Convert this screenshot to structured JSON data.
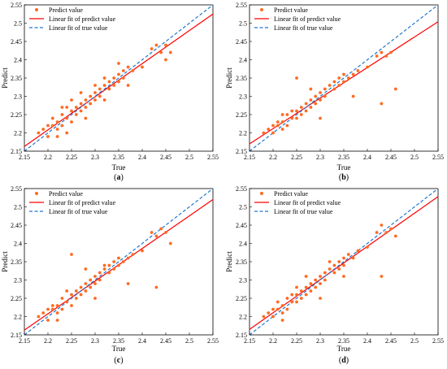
{
  "chart_data": [
    {
      "type": "scatter",
      "panel_label": "a",
      "xlabel": "True",
      "ylabel": "Predict",
      "xlim": [
        2.15,
        2.55
      ],
      "ylim": [
        2.15,
        2.55
      ],
      "xticks": [
        "2.15",
        "2.2",
        "2.25",
        "2.3",
        "2.35",
        "2.4",
        "2.45",
        "2.5",
        "2.55"
      ],
      "yticks": [
        "2.15",
        "2.2",
        "2.25",
        "2.3",
        "2.35",
        "2.4",
        "2.45",
        "2.5",
        "2.55"
      ],
      "legend_position": "top-left",
      "series": [
        {
          "name": "Predict value",
          "kind": "scatter",
          "color": "#ff6a21",
          "points": [
            [
              2.18,
              2.2
            ],
            [
              2.19,
              2.21
            ],
            [
              2.2,
              2.22
            ],
            [
              2.2,
              2.19
            ],
            [
              2.21,
              2.22
            ],
            [
              2.21,
              2.24
            ],
            [
              2.22,
              2.23
            ],
            [
              2.22,
              2.21
            ],
            [
              2.23,
              2.25
            ],
            [
              2.23,
              2.22
            ],
            [
              2.24,
              2.24
            ],
            [
              2.24,
              2.27
            ],
            [
              2.25,
              2.26
            ],
            [
              2.25,
              2.23
            ],
            [
              2.26,
              2.27
            ],
            [
              2.26,
              2.25
            ],
            [
              2.27,
              2.28
            ],
            [
              2.27,
              2.26
            ],
            [
              2.28,
              2.29
            ],
            [
              2.28,
              2.27
            ],
            [
              2.29,
              2.3
            ],
            [
              2.29,
              2.28
            ],
            [
              2.3,
              2.31
            ],
            [
              2.3,
              2.29
            ],
            [
              2.31,
              2.32
            ],
            [
              2.31,
              2.3
            ],
            [
              2.32,
              2.33
            ],
            [
              2.32,
              2.35
            ],
            [
              2.33,
              2.34
            ],
            [
              2.33,
              2.32
            ],
            [
              2.34,
              2.35
            ],
            [
              2.34,
              2.33
            ],
            [
              2.35,
              2.36
            ],
            [
              2.35,
              2.34
            ],
            [
              2.36,
              2.37
            ],
            [
              2.36,
              2.35
            ],
            [
              2.37,
              2.38
            ],
            [
              2.38,
              2.37
            ],
            [
              2.4,
              2.38
            ],
            [
              2.42,
              2.43
            ],
            [
              2.43,
              2.44
            ],
            [
              2.44,
              2.42
            ],
            [
              2.45,
              2.44
            ],
            [
              2.46,
              2.42
            ],
            [
              2.22,
              2.19
            ],
            [
              2.23,
              2.27
            ],
            [
              2.25,
              2.29
            ],
            [
              2.28,
              2.24
            ],
            [
              2.3,
              2.33
            ],
            [
              2.32,
              2.29
            ],
            [
              2.35,
              2.39
            ],
            [
              2.37,
              2.33
            ],
            [
              2.24,
              2.2
            ],
            [
              2.27,
              2.31
            ],
            [
              2.45,
              2.4
            ]
          ]
        },
        {
          "name": "Linear fit of predict value",
          "kind": "line",
          "color": "#ff0000",
          "x": [
            2.15,
            2.55
          ],
          "y": [
            2.163,
            2.525
          ]
        },
        {
          "name": "Linear fit of true value",
          "kind": "dashed-line",
          "color": "#1f77d0",
          "x": [
            2.15,
            2.55
          ],
          "y": [
            2.15,
            2.55
          ]
        }
      ]
    },
    {
      "type": "scatter",
      "panel_label": "b",
      "xlabel": "True",
      "ylabel": "Predict",
      "xlim": [
        2.15,
        2.55
      ],
      "ylim": [
        2.15,
        2.55
      ],
      "xticks": [
        "2.15",
        "2.2",
        "2.25",
        "2.3",
        "2.35",
        "2.4",
        "2.45",
        "2.5",
        "2.55"
      ],
      "yticks": [
        "2.15",
        "2.2",
        "2.25",
        "2.3",
        "2.35",
        "2.4",
        "2.45",
        "2.5",
        "2.55"
      ],
      "legend_position": "top-left",
      "series": [
        {
          "name": "Predict value",
          "kind": "scatter",
          "color": "#ff6a21",
          "points": [
            [
              2.18,
              2.2
            ],
            [
              2.19,
              2.21
            ],
            [
              2.2,
              2.22
            ],
            [
              2.2,
              2.2
            ],
            [
              2.21,
              2.22
            ],
            [
              2.21,
              2.23
            ],
            [
              2.22,
              2.23
            ],
            [
              2.22,
              2.21
            ],
            [
              2.23,
              2.25
            ],
            [
              2.23,
              2.22
            ],
            [
              2.24,
              2.24
            ],
            [
              2.24,
              2.26
            ],
            [
              2.25,
              2.26
            ],
            [
              2.25,
              2.24
            ],
            [
              2.26,
              2.27
            ],
            [
              2.26,
              2.25
            ],
            [
              2.27,
              2.28
            ],
            [
              2.27,
              2.26
            ],
            [
              2.28,
              2.29
            ],
            [
              2.28,
              2.27
            ],
            [
              2.29,
              2.3
            ],
            [
              2.29,
              2.28
            ],
            [
              2.3,
              2.31
            ],
            [
              2.3,
              2.29
            ],
            [
              2.31,
              2.32
            ],
            [
              2.31,
              2.3
            ],
            [
              2.32,
              2.33
            ],
            [
              2.33,
              2.34
            ],
            [
              2.33,
              2.32
            ],
            [
              2.34,
              2.35
            ],
            [
              2.34,
              2.33
            ],
            [
              2.35,
              2.36
            ],
            [
              2.35,
              2.34
            ],
            [
              2.36,
              2.35
            ],
            [
              2.37,
              2.36
            ],
            [
              2.38,
              2.37
            ],
            [
              2.4,
              2.38
            ],
            [
              2.42,
              2.41
            ],
            [
              2.43,
              2.42
            ],
            [
              2.44,
              2.41
            ],
            [
              2.45,
              2.42
            ],
            [
              2.25,
              2.35
            ],
            [
              2.43,
              2.28
            ],
            [
              2.46,
              2.32
            ],
            [
              2.37,
              2.3
            ],
            [
              2.22,
              2.25
            ],
            [
              2.3,
              2.24
            ],
            [
              2.28,
              2.32
            ]
          ]
        },
        {
          "name": "Linear fit of predict value",
          "kind": "line",
          "color": "#ff0000",
          "x": [
            2.15,
            2.55
          ],
          "y": [
            2.17,
            2.504
          ]
        },
        {
          "name": "Linear fit of true value",
          "kind": "dashed-line",
          "color": "#1f77d0",
          "x": [
            2.15,
            2.55
          ],
          "y": [
            2.15,
            2.55
          ]
        }
      ]
    },
    {
      "type": "scatter",
      "panel_label": "c",
      "xlabel": "True",
      "ylabel": "Predict",
      "xlim": [
        2.15,
        2.55
      ],
      "ylim": [
        2.15,
        2.55
      ],
      "xticks": [
        "2.15",
        "2.2",
        "2.25",
        "2.3",
        "2.35",
        "2.4",
        "2.45",
        "2.5",
        "2.55"
      ],
      "yticks": [
        "2.15",
        "2.2",
        "2.25",
        "2.3",
        "2.35",
        "2.4",
        "2.45",
        "2.5",
        "2.55"
      ],
      "legend_position": "top-left",
      "series": [
        {
          "name": "Predict value",
          "kind": "scatter",
          "color": "#ff6a21",
          "points": [
            [
              2.18,
              2.2
            ],
            [
              2.19,
              2.21
            ],
            [
              2.2,
              2.22
            ],
            [
              2.2,
              2.19
            ],
            [
              2.21,
              2.22
            ],
            [
              2.21,
              2.23
            ],
            [
              2.22,
              2.23
            ],
            [
              2.22,
              2.21
            ],
            [
              2.23,
              2.25
            ],
            [
              2.23,
              2.22
            ],
            [
              2.24,
              2.24
            ],
            [
              2.24,
              2.27
            ],
            [
              2.25,
              2.26
            ],
            [
              2.25,
              2.23
            ],
            [
              2.26,
              2.27
            ],
            [
              2.26,
              2.25
            ],
            [
              2.27,
              2.28
            ],
            [
              2.27,
              2.26
            ],
            [
              2.28,
              2.29
            ],
            [
              2.28,
              2.27
            ],
            [
              2.29,
              2.3
            ],
            [
              2.29,
              2.28
            ],
            [
              2.3,
              2.31
            ],
            [
              2.3,
              2.29
            ],
            [
              2.31,
              2.32
            ],
            [
              2.31,
              2.3
            ],
            [
              2.32,
              2.33
            ],
            [
              2.32,
              2.34
            ],
            [
              2.33,
              2.34
            ],
            [
              2.33,
              2.32
            ],
            [
              2.34,
              2.35
            ],
            [
              2.34,
              2.33
            ],
            [
              2.35,
              2.36
            ],
            [
              2.35,
              2.34
            ],
            [
              2.36,
              2.35
            ],
            [
              2.37,
              2.36
            ],
            [
              2.38,
              2.37
            ],
            [
              2.4,
              2.38
            ],
            [
              2.42,
              2.43
            ],
            [
              2.43,
              2.42
            ],
            [
              2.44,
              2.44
            ],
            [
              2.45,
              2.43
            ],
            [
              2.46,
              2.4
            ],
            [
              2.25,
              2.37
            ],
            [
              2.43,
              2.28
            ],
            [
              2.37,
              2.29
            ],
            [
              2.22,
              2.19
            ],
            [
              2.3,
              2.25
            ],
            [
              2.28,
              2.33
            ]
          ]
        },
        {
          "name": "Linear fit of predict value",
          "kind": "line",
          "color": "#ff0000",
          "x": [
            2.15,
            2.55
          ],
          "y": [
            2.163,
            2.52
          ]
        },
        {
          "name": "Linear fit of true value",
          "kind": "dashed-line",
          "color": "#1f77d0",
          "x": [
            2.15,
            2.55
          ],
          "y": [
            2.15,
            2.55
          ]
        }
      ]
    },
    {
      "type": "scatter",
      "panel_label": "d",
      "xlabel": "True",
      "ylabel": "Predict",
      "xlim": [
        2.15,
        2.55
      ],
      "ylim": [
        2.15,
        2.55
      ],
      "xticks": [
        "2.15",
        "2.2",
        "2.25",
        "2.3",
        "2.35",
        "2.4",
        "2.45",
        "2.5",
        "2.55"
      ],
      "yticks": [
        "2.15",
        "2.2",
        "2.25",
        "2.3",
        "2.35",
        "2.4",
        "2.45",
        "2.5",
        "2.55"
      ],
      "legend_position": "top-left",
      "series": [
        {
          "name": "Predict value",
          "kind": "scatter",
          "color": "#ff6a21",
          "points": [
            [
              2.18,
              2.2
            ],
            [
              2.19,
              2.21
            ],
            [
              2.2,
              2.22
            ],
            [
              2.2,
              2.2
            ],
            [
              2.21,
              2.22
            ],
            [
              2.21,
              2.24
            ],
            [
              2.22,
              2.23
            ],
            [
              2.22,
              2.21
            ],
            [
              2.23,
              2.25
            ],
            [
              2.23,
              2.22
            ],
            [
              2.24,
              2.24
            ],
            [
              2.24,
              2.26
            ],
            [
              2.25,
              2.26
            ],
            [
              2.25,
              2.24
            ],
            [
              2.26,
              2.27
            ],
            [
              2.26,
              2.25
            ],
            [
              2.27,
              2.28
            ],
            [
              2.27,
              2.26
            ],
            [
              2.28,
              2.29
            ],
            [
              2.28,
              2.27
            ],
            [
              2.29,
              2.3
            ],
            [
              2.29,
              2.28
            ],
            [
              2.3,
              2.31
            ],
            [
              2.3,
              2.29
            ],
            [
              2.31,
              2.32
            ],
            [
              2.31,
              2.3
            ],
            [
              2.32,
              2.33
            ],
            [
              2.32,
              2.35
            ],
            [
              2.33,
              2.34
            ],
            [
              2.33,
              2.32
            ],
            [
              2.34,
              2.35
            ],
            [
              2.34,
              2.33
            ],
            [
              2.35,
              2.36
            ],
            [
              2.35,
              2.34
            ],
            [
              2.36,
              2.37
            ],
            [
              2.37,
              2.36
            ],
            [
              2.38,
              2.38
            ],
            [
              2.4,
              2.39
            ],
            [
              2.42,
              2.43
            ],
            [
              2.43,
              2.45
            ],
            [
              2.44,
              2.43
            ],
            [
              2.45,
              2.44
            ],
            [
              2.46,
              2.42
            ],
            [
              2.43,
              2.31
            ],
            [
              2.22,
              2.19
            ],
            [
              2.27,
              2.31
            ],
            [
              2.3,
              2.25
            ],
            [
              2.35,
              2.31
            ],
            [
              2.25,
              2.28
            ]
          ]
        },
        {
          "name": "Linear fit of predict value",
          "kind": "line",
          "color": "#ff0000",
          "x": [
            2.15,
            2.55
          ],
          "y": [
            2.165,
            2.528
          ]
        },
        {
          "name": "Linear fit of true value",
          "kind": "dashed-line",
          "color": "#1f77d0",
          "x": [
            2.15,
            2.55
          ],
          "y": [
            2.15,
            2.55
          ]
        }
      ]
    }
  ]
}
